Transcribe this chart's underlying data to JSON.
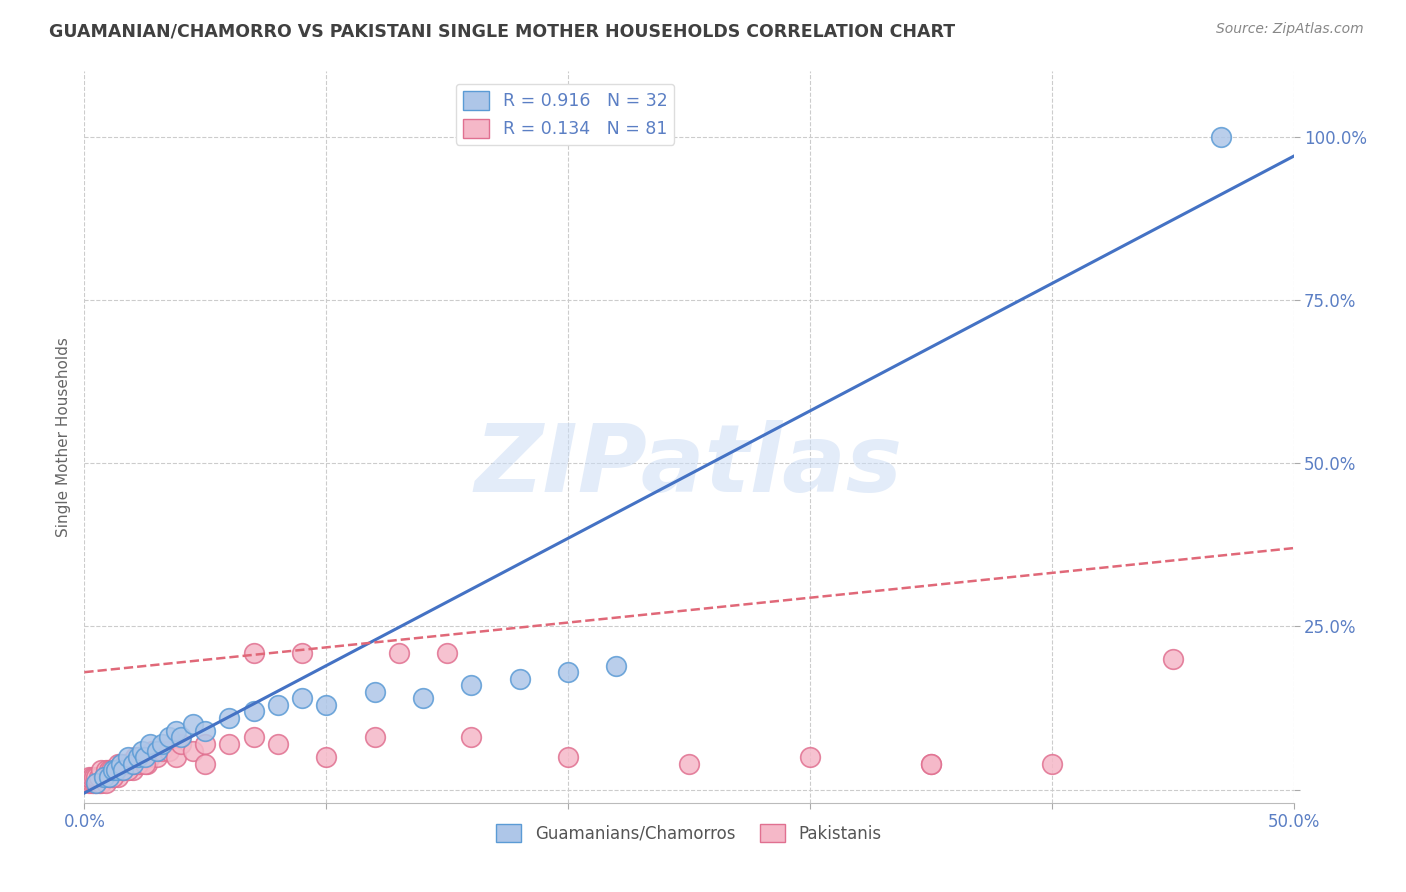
{
  "title": "GUAMANIAN/CHAMORRO VS PAKISTANI SINGLE MOTHER HOUSEHOLDS CORRELATION CHART",
  "source": "Source: ZipAtlas.com",
  "ylabel": "Single Mother Households",
  "xlim": [
    0.0,
    0.5
  ],
  "ylim": [
    -0.02,
    1.1
  ],
  "xticks": [
    0.0,
    0.1,
    0.2,
    0.3,
    0.4,
    0.5
  ],
  "xticklabels": [
    "0.0%",
    "",
    "",
    "",
    "",
    "50.0%"
  ],
  "yticks": [
    0.0,
    0.25,
    0.5,
    0.75,
    1.0
  ],
  "yticklabels_right": [
    "100.0%",
    "75.0%",
    "50.0%",
    "25.0%",
    ""
  ],
  "guam_R": 0.916,
  "guam_N": 32,
  "pak_R": 0.134,
  "pak_N": 81,
  "guam_color": "#aec6e8",
  "pak_color": "#f5b8c8",
  "guam_edge_color": "#5b9bd5",
  "pak_edge_color": "#e07090",
  "guam_line_color": "#4472c4",
  "pak_line_color": "#e06878",
  "legend_label_guam": "Guamanians/Chamorros",
  "legend_label_pak": "Pakistanis",
  "watermark_text": "ZIPatlas",
  "background_color": "#ffffff",
  "grid_color": "#cccccc",
  "title_color": "#404040",
  "tick_color": "#5b7fc4",
  "source_color": "#888888",
  "ylabel_color": "#666666",
  "guam_line_slope": 1.95,
  "guam_line_intercept": -0.005,
  "pak_line_slope": 0.38,
  "pak_line_intercept": 0.18,
  "guam_scatter_x": [
    0.005,
    0.008,
    0.01,
    0.012,
    0.013,
    0.015,
    0.016,
    0.018,
    0.02,
    0.022,
    0.024,
    0.025,
    0.027,
    0.03,
    0.032,
    0.035,
    0.038,
    0.04,
    0.045,
    0.05,
    0.06,
    0.07,
    0.08,
    0.09,
    0.1,
    0.12,
    0.14,
    0.16,
    0.18,
    0.2,
    0.22,
    0.47
  ],
  "guam_scatter_y": [
    0.01,
    0.02,
    0.02,
    0.03,
    0.03,
    0.04,
    0.03,
    0.05,
    0.04,
    0.05,
    0.06,
    0.05,
    0.07,
    0.06,
    0.07,
    0.08,
    0.09,
    0.08,
    0.1,
    0.09,
    0.11,
    0.12,
    0.13,
    0.14,
    0.13,
    0.15,
    0.14,
    0.16,
    0.17,
    0.18,
    0.19,
    1.0
  ],
  "pak_scatter_x": [
    0.002,
    0.003,
    0.004,
    0.005,
    0.006,
    0.007,
    0.007,
    0.008,
    0.009,
    0.01,
    0.01,
    0.011,
    0.012,
    0.012,
    0.013,
    0.014,
    0.015,
    0.015,
    0.016,
    0.017,
    0.018,
    0.018,
    0.019,
    0.02,
    0.021,
    0.022,
    0.023,
    0.024,
    0.025,
    0.026,
    0.027,
    0.028,
    0.03,
    0.032,
    0.035,
    0.038,
    0.04,
    0.045,
    0.05,
    0.06,
    0.07,
    0.08,
    0.1,
    0.12,
    0.15,
    0.3,
    0.35,
    0.4,
    0.002,
    0.003,
    0.004,
    0.005,
    0.006,
    0.007,
    0.008,
    0.009,
    0.01,
    0.011,
    0.012,
    0.013,
    0.014,
    0.015,
    0.016,
    0.017,
    0.018,
    0.019,
    0.02,
    0.021,
    0.022,
    0.023,
    0.024,
    0.025,
    0.05,
    0.07,
    0.09,
    0.13,
    0.16,
    0.2,
    0.25,
    0.35,
    0.45
  ],
  "pak_scatter_y": [
    0.01,
    0.01,
    0.01,
    0.01,
    0.01,
    0.01,
    0.02,
    0.02,
    0.01,
    0.02,
    0.03,
    0.02,
    0.02,
    0.03,
    0.03,
    0.02,
    0.03,
    0.04,
    0.03,
    0.04,
    0.03,
    0.04,
    0.04,
    0.03,
    0.04,
    0.05,
    0.04,
    0.05,
    0.05,
    0.04,
    0.05,
    0.06,
    0.05,
    0.06,
    0.06,
    0.05,
    0.07,
    0.06,
    0.07,
    0.07,
    0.08,
    0.07,
    0.05,
    0.08,
    0.21,
    0.05,
    0.04,
    0.04,
    0.02,
    0.02,
    0.02,
    0.02,
    0.02,
    0.03,
    0.02,
    0.03,
    0.03,
    0.03,
    0.02,
    0.03,
    0.04,
    0.04,
    0.03,
    0.04,
    0.03,
    0.04,
    0.04,
    0.05,
    0.04,
    0.05,
    0.05,
    0.04,
    0.04,
    0.21,
    0.21,
    0.21,
    0.08,
    0.05,
    0.04,
    0.04,
    0.2
  ]
}
